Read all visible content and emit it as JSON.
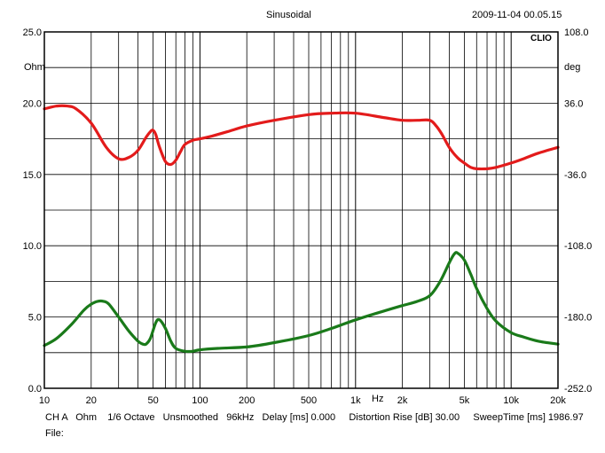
{
  "header": {
    "title": "Sinusoidal",
    "timestamp": "2009-11-04 00.05.15",
    "brand": "CLIO"
  },
  "footer": {
    "settings": "CH A   Ohm    1/6 Octave   Unsmoothed   96kHz   Delay [ms] 0.000     Distortion Rise [dB] 30.00     SweepTime [ms] 1986.97",
    "file_label": "File:"
  },
  "chart_data": {
    "type": "line",
    "x_scale": "log",
    "xlim": [
      10,
      20000
    ],
    "x_unit": "Hz",
    "x_ticks": [
      10,
      20,
      50,
      100,
      200,
      500,
      1000,
      2000,
      5000,
      10000,
      20000
    ],
    "x_tick_labels": [
      "10",
      "20",
      "50",
      "100",
      "200",
      "500",
      "1k",
      "2k",
      "5k",
      "10k",
      "20k"
    ],
    "ylabel_left": "Ohm",
    "ylim_left": [
      0,
      25
    ],
    "y_ticks_left": [
      "0.0",
      "5.0",
      "10.0",
      "15.0",
      "20.0",
      "25.0"
    ],
    "ylabel_right": "deg",
    "ylim_right": [
      -252,
      108
    ],
    "y_ticks_right": [
      "-252.0",
      "-180.0",
      "-108.0",
      "-36.0",
      "36.0",
      "108.0"
    ],
    "grid": true,
    "colors": {
      "impedance": "#e31b1b",
      "phase": "#1a7a1a",
      "grid": "#000000"
    },
    "series": [
      {
        "axis": "left",
        "color": "#e31b1b",
        "x": [
          10,
          12,
          14,
          16,
          20,
          25,
          30,
          35,
          40,
          45,
          48,
          50,
          52,
          55,
          60,
          65,
          70,
          75,
          80,
          90,
          100,
          120,
          150,
          200,
          300,
          500,
          700,
          1000,
          1500,
          2000,
          2500,
          3000,
          3300,
          3600,
          4000,
          4500,
          5000,
          5500,
          6000,
          7000,
          8000,
          10000,
          12000,
          15000,
          20000
        ],
        "values": [
          19.6,
          19.8,
          19.8,
          19.6,
          18.6,
          16.9,
          16.1,
          16.2,
          16.7,
          17.6,
          18.0,
          18.1,
          17.8,
          16.9,
          15.9,
          15.7,
          16.0,
          16.6,
          17.1,
          17.4,
          17.5,
          17.7,
          18.0,
          18.4,
          18.8,
          19.2,
          19.3,
          19.3,
          19.0,
          18.8,
          18.8,
          18.8,
          18.4,
          17.8,
          16.9,
          16.2,
          15.8,
          15.5,
          15.4,
          15.4,
          15.5,
          15.8,
          16.1,
          16.5,
          16.9
        ]
      },
      {
        "axis": "left",
        "color": "#1a7a1a",
        "x": [
          10,
          12,
          15,
          18,
          20,
          22,
          24,
          26,
          30,
          35,
          40,
          43,
          45,
          48,
          52,
          55,
          60,
          65,
          70,
          80,
          90,
          100,
          130,
          200,
          300,
          500,
          700,
          1000,
          1500,
          2000,
          2500,
          3000,
          3500,
          4000,
          4300,
          4500,
          5000,
          5500,
          6000,
          7000,
          8000,
          10000,
          12000,
          15000,
          20000
        ],
        "values": [
          3.0,
          3.5,
          4.5,
          5.5,
          5.9,
          6.1,
          6.1,
          5.9,
          5.0,
          4.0,
          3.3,
          3.1,
          3.1,
          3.5,
          4.6,
          4.8,
          4.2,
          3.3,
          2.8,
          2.6,
          2.6,
          2.7,
          2.8,
          2.9,
          3.2,
          3.7,
          4.2,
          4.8,
          5.4,
          5.8,
          6.1,
          6.5,
          7.5,
          8.8,
          9.4,
          9.5,
          9.0,
          8.0,
          7.0,
          5.6,
          4.7,
          3.9,
          3.6,
          3.3,
          3.1
        ]
      }
    ]
  }
}
